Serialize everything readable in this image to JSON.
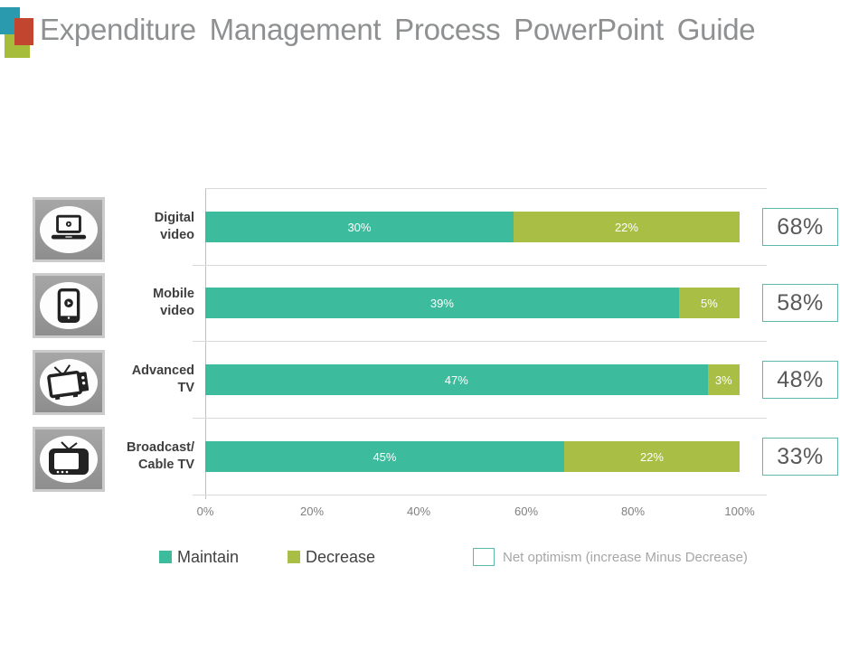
{
  "slide_title": "Expenditure Management Process PowerPoint Guide",
  "logo": {
    "teal": "#2a9aaf",
    "red": "#c2462f",
    "green": "#a6bd3c"
  },
  "chart_data": {
    "type": "bar",
    "orientation": "horizontal",
    "stacking": "normalized-to-100%",
    "categories": [
      "Digital video",
      "Mobile video",
      "Advanced TV",
      "Broadcast/ Cable TV"
    ],
    "series": [
      {
        "name": "Maintain",
        "color": "#3cbc9c",
        "values": [
          30,
          39,
          47,
          45
        ]
      },
      {
        "name": "Decrease",
        "color": "#a9be44",
        "values": [
          22,
          5,
          3,
          22
        ]
      }
    ],
    "net_optimism": {
      "label": "Net optimism (increase Minus Decrease)",
      "values": [
        68,
        58,
        48,
        33
      ]
    },
    "x_ticks": [
      "0%",
      "20%",
      "40%",
      "60%",
      "80%",
      "100%"
    ],
    "xlim": [
      0,
      100
    ],
    "grid": "horizontal row separators, light gray",
    "legend_position": "bottom"
  },
  "rows": [
    {
      "category": "Digital\nvideo",
      "icon": "laptop-video",
      "maintain_label": "30%",
      "decrease_label": "22%",
      "net_label": "68%"
    },
    {
      "category": "Mobile\nvideo",
      "icon": "tablet-video",
      "maintain_label": "39%",
      "decrease_label": "5%",
      "net_label": "58%"
    },
    {
      "category": "Advanced\nTV",
      "icon": "tv-antenna",
      "maintain_label": "47%",
      "decrease_label": "3%",
      "net_label": "48%"
    },
    {
      "category": "Broadcast/\nCable TV",
      "icon": "retro-tv",
      "maintain_label": "45%",
      "decrease_label": "22%",
      "net_label": "33%"
    }
  ],
  "colors": {
    "maintain": "#3cbc9c",
    "decrease": "#a9be44",
    "net_box_border": "#5fb8ae",
    "net_text": "#595959",
    "title_text": "#8e9092",
    "category_text": "#3f3f3f",
    "axis_text": "#7f7f7f",
    "legend_note_text": "#a6a6a6",
    "gridline": "#d9d9d9"
  }
}
